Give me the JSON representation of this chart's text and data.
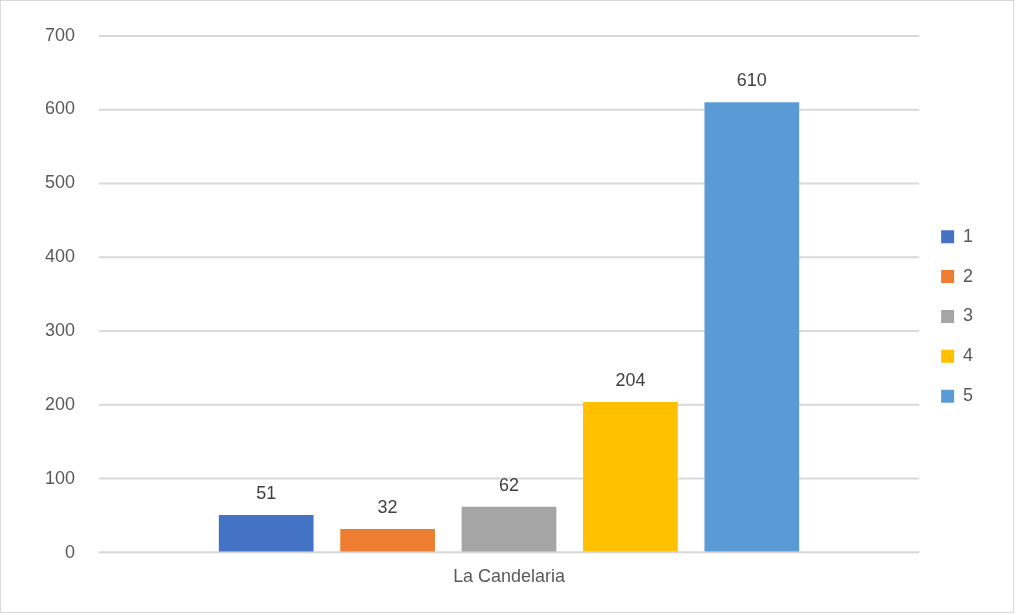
{
  "chart_data": {
    "type": "bar",
    "categories": [
      "La Candelaria"
    ],
    "series": [
      {
        "name": "1",
        "color": "#4472c4",
        "values": [
          51
        ]
      },
      {
        "name": "2",
        "color": "#ed7d31",
        "values": [
          32
        ]
      },
      {
        "name": "3",
        "color": "#a5a5a5",
        "values": [
          62
        ]
      },
      {
        "name": "4",
        "color": "#ffc000",
        "values": [
          204
        ]
      },
      {
        "name": "5",
        "color": "#5b9bd5",
        "values": [
          610
        ]
      }
    ],
    "ylim": [
      0,
      700
    ],
    "yticks": [
      0,
      100,
      200,
      300,
      400,
      500,
      600,
      700
    ],
    "grid": "y",
    "legend": "right",
    "data_labels": true
  }
}
